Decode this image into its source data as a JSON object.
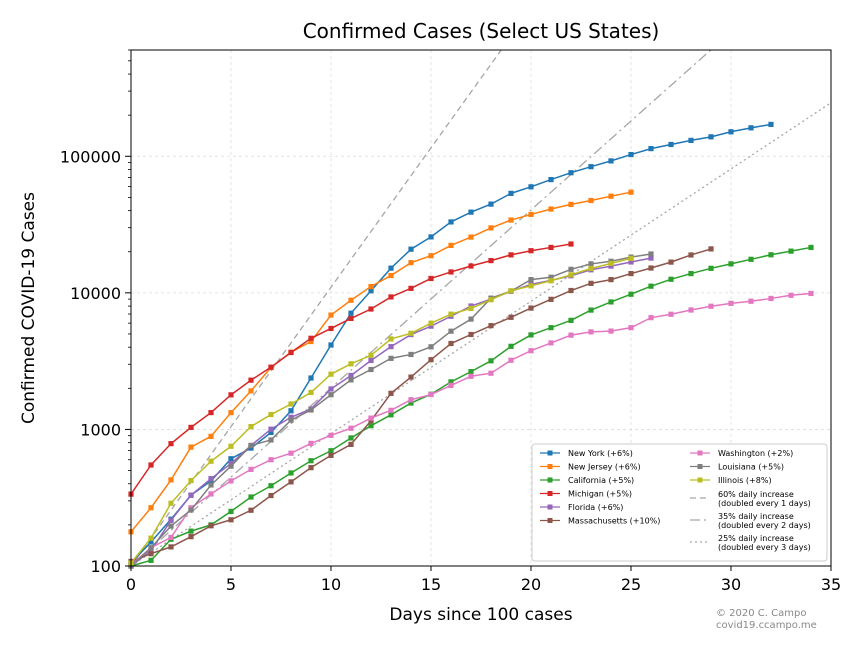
{
  "chart_data": {
    "type": "line",
    "title": "Confirmed Cases (Select US States)",
    "xlabel": "Days since 100 cases",
    "ylabel": "Confirmed COVID-19 Cases",
    "yscale": "log",
    "xlim": [
      0,
      35
    ],
    "ylim": [
      100,
      600000
    ],
    "x_ticks": [
      0,
      5,
      10,
      15,
      20,
      25,
      30,
      35
    ],
    "y_ticks": [
      100,
      1000,
      10000,
      100000
    ],
    "y_tick_labels": [
      "100",
      "1000",
      "10000",
      "100000"
    ],
    "grid": true,
    "legend_position": "lower-right",
    "series": [
      {
        "name": "New York (+6%)",
        "color": "#1f77b4",
        "values": [
          105,
          150,
          220,
          330,
          420,
          610,
          730,
          950,
          1370,
          2380,
          4150,
          7100,
          10360,
          15170,
          20880,
          25680,
          33060,
          38990,
          44640,
          53520,
          59750,
          67500,
          75800,
          83900,
          92500,
          102900,
          113800,
          122000,
          130700,
          138800,
          151100,
          161500,
          171100
        ]
      },
      {
        "name": "New Jersey (+6%)",
        "color": "#ff7f0e",
        "values": [
          178,
          267,
          427,
          742,
          890,
          1327,
          1914,
          2844,
          3675,
          4402,
          6876,
          8825,
          11124,
          13386,
          16636,
          18696,
          22255,
          25590,
          29895,
          34124,
          37505,
          41090,
          44416,
          47437,
          51027,
          54588
        ]
      },
      {
        "name": "California (+5%)",
        "color": "#2ca02c",
        "values": [
          100,
          110,
          157,
          180,
          200,
          251,
          320,
          387,
          480,
          590,
          698,
          866,
          1065,
          1279,
          1560,
          1810,
          2230,
          2650,
          3180,
          4060,
          4920,
          5560,
          6290,
          7480,
          8580,
          9770,
          11190,
          12570,
          13840,
          15120,
          16300,
          17600,
          19000,
          20200,
          21500
        ]
      },
      {
        "name": "Michigan (+5%)",
        "color": "#d62728",
        "values": [
          336,
          549,
          787,
          1035,
          1328,
          1791,
          2294,
          2856,
          3657,
          4650,
          5486,
          6498,
          7615,
          9334,
          10791,
          12744,
          14225,
          15718,
          17221,
          18970,
          20346,
          21504,
          22783
        ]
      },
      {
        "name": "Florida (+6%)",
        "color": "#9467bd",
        "values": [
          100,
          130,
          216,
          330,
          436,
          563,
          763,
          1004,
          1227,
          1412,
          1977,
          2484,
          3198,
          4038,
          4950,
          5704,
          6741,
          8010,
          9008,
          10268,
          11545,
          12350,
          13324,
          14747,
          15698,
          16826,
          17968
        ]
      },
      {
        "name": "Massachusetts (+10%)",
        "color": "#8c564b",
        "values": [
          108,
          123,
          138,
          164,
          197,
          218,
          256,
          328,
          413,
          525,
          646,
          777,
          1159,
          1838,
          2417,
          3240,
          4257,
          4955,
          5752,
          6620,
          7738,
          8966,
          10402,
          11736,
          12500,
          13837,
          15202,
          16790,
          18941,
          20974
        ]
      },
      {
        "name": "Washington (+2%)",
        "color": "#e377c2",
        "values": [
          102,
          136,
          162,
          267,
          337,
          420,
          510,
          600,
          670,
          790,
          905,
          1020,
          1210,
          1380,
          1650,
          1800,
          2100,
          2450,
          2580,
          3210,
          3770,
          4300,
          4900,
          5180,
          5250,
          5560,
          6580,
          6970,
          7490,
          7980,
          8380,
          8680,
          9100,
          9600,
          9900
        ]
      },
      {
        "name": "Louisiana (+5%)",
        "color": "#7f7f7f",
        "values": [
          100,
          136,
          196,
          257,
          392,
          538,
          763,
          837,
          1170,
          1388,
          1795,
          2305,
          2746,
          3315,
          3540,
          4025,
          5237,
          6424,
          9150,
          10297,
          12496,
          13010,
          14867,
          16284,
          17030,
          18283,
          19253
        ]
      },
      {
        "name": "Illinois (+8%)",
        "color": "#bcbd22",
        "values": [
          105,
          160,
          288,
          422,
          585,
          753,
          1049,
          1285,
          1535,
          1865,
          2538,
          3024,
          3491,
          4596,
          5057,
          5994,
          6980,
          7695,
          8904,
          10357,
          11256,
          12262,
          13549,
          15078,
          16422,
          17887
        ]
      }
    ],
    "reference_lines": [
      {
        "name": "60% daily increase\n(doubled every 1 days)",
        "growth": 1.6,
        "dash": "6,4",
        "color": "#a6a6a6"
      },
      {
        "name": "35% daily increase\n(doubled every 2 days)",
        "growth": 1.35,
        "dash": "10,4,2,4",
        "color": "#a6a6a6"
      },
      {
        "name": "25% daily increase\n(doubled every 3 days)",
        "growth": 1.25,
        "dash": "2,3",
        "color": "#a6a6a6"
      }
    ]
  },
  "credit": {
    "line1": "© 2020 C. Campo",
    "line2": "covid19.ccampo.me"
  }
}
